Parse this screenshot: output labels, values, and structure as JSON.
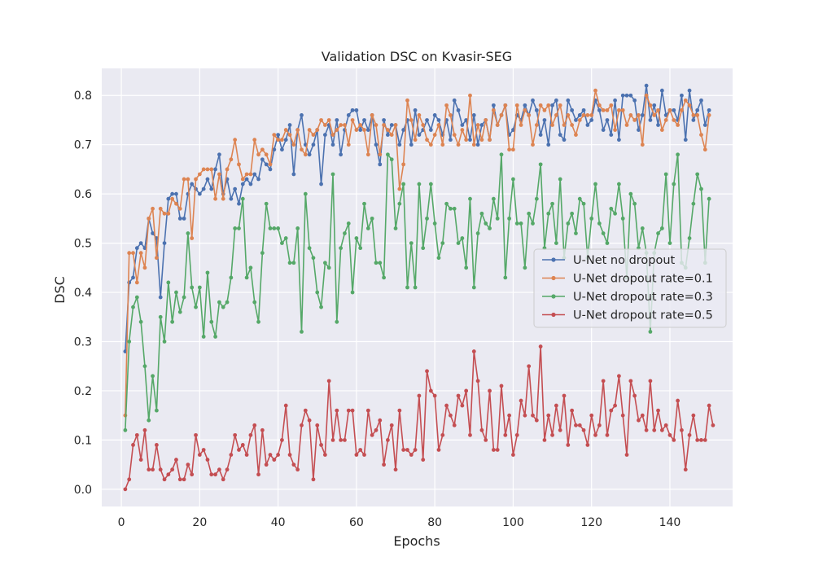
{
  "chart_data": {
    "type": "line",
    "title": "Validation DSC on Kvasir-SEG",
    "xlabel": "Epochs",
    "ylabel": "DSC",
    "xlim": [
      -5,
      156
    ],
    "ylim": [
      -0.035,
      0.855
    ],
    "xticks": [
      0,
      20,
      40,
      60,
      80,
      100,
      120,
      140
    ],
    "yticks": [
      0.0,
      0.1,
      0.2,
      0.3,
      0.4,
      0.5,
      0.6,
      0.7,
      0.8
    ],
    "grid": true,
    "legend_position": "center-right",
    "x_start": 1,
    "series": [
      {
        "name": "U-Net no dropout",
        "color": "#4c72b0",
        "values": [
          0.28,
          0.42,
          0.43,
          0.49,
          0.5,
          0.49,
          0.55,
          0.52,
          0.51,
          0.39,
          0.5,
          0.59,
          0.6,
          0.6,
          0.55,
          0.55,
          0.6,
          0.62,
          0.61,
          0.6,
          0.61,
          0.63,
          0.61,
          0.65,
          0.68,
          0.6,
          0.63,
          0.59,
          0.61,
          0.58,
          0.62,
          0.63,
          0.62,
          0.64,
          0.63,
          0.67,
          0.66,
          0.65,
          0.69,
          0.72,
          0.69,
          0.71,
          0.74,
          0.64,
          0.73,
          0.76,
          0.7,
          0.68,
          0.7,
          0.73,
          0.62,
          0.72,
          0.74,
          0.7,
          0.75,
          0.68,
          0.73,
          0.76,
          0.77,
          0.77,
          0.73,
          0.75,
          0.73,
          0.76,
          0.7,
          0.66,
          0.75,
          0.72,
          0.74,
          0.74,
          0.7,
          0.73,
          0.75,
          0.7,
          0.77,
          0.72,
          0.73,
          0.75,
          0.73,
          0.76,
          0.75,
          0.72,
          0.75,
          0.71,
          0.79,
          0.77,
          0.74,
          0.75,
          0.71,
          0.76,
          0.7,
          0.74,
          0.75,
          0.71,
          0.78,
          0.74,
          0.76,
          0.78,
          0.72,
          0.73,
          0.76,
          0.75,
          0.78,
          0.76,
          0.79,
          0.77,
          0.72,
          0.75,
          0.7,
          0.78,
          0.79,
          0.72,
          0.71,
          0.79,
          0.77,
          0.75,
          0.76,
          0.77,
          0.74,
          0.75,
          0.79,
          0.77,
          0.73,
          0.75,
          0.72,
          0.79,
          0.71,
          0.8,
          0.8,
          0.8,
          0.79,
          0.73,
          0.76,
          0.82,
          0.75,
          0.78,
          0.74,
          0.81,
          0.76,
          0.77,
          0.77,
          0.75,
          0.8,
          0.71,
          0.81,
          0.75,
          0.77,
          0.79,
          0.74,
          0.77
        ]
      },
      {
        "name": "U-Net dropout rate=0.1",
        "color": "#dd8452",
        "values": [
          0.15,
          0.48,
          0.48,
          0.42,
          0.48,
          0.45,
          0.55,
          0.57,
          0.47,
          0.57,
          0.56,
          0.56,
          0.59,
          0.58,
          0.57,
          0.63,
          0.63,
          0.51,
          0.63,
          0.64,
          0.65,
          0.65,
          0.65,
          0.59,
          0.64,
          0.59,
          0.65,
          0.67,
          0.71,
          0.66,
          0.63,
          0.64,
          0.64,
          0.71,
          0.68,
          0.69,
          0.68,
          0.66,
          0.72,
          0.71,
          0.71,
          0.73,
          0.72,
          0.7,
          0.73,
          0.69,
          0.68,
          0.73,
          0.72,
          0.73,
          0.75,
          0.74,
          0.75,
          0.72,
          0.73,
          0.74,
          0.74,
          0.7,
          0.75,
          0.73,
          0.74,
          0.73,
          0.68,
          0.76,
          0.74,
          0.68,
          0.74,
          0.73,
          0.72,
          0.74,
          0.61,
          0.66,
          0.79,
          0.75,
          0.71,
          0.76,
          0.74,
          0.71,
          0.7,
          0.72,
          0.74,
          0.7,
          0.78,
          0.76,
          0.72,
          0.7,
          0.73,
          0.71,
          0.8,
          0.7,
          0.74,
          0.71,
          0.75,
          0.71,
          0.77,
          0.74,
          0.76,
          0.78,
          0.69,
          0.69,
          0.78,
          0.74,
          0.77,
          0.76,
          0.7,
          0.74,
          0.78,
          0.77,
          0.78,
          0.74,
          0.76,
          0.78,
          0.74,
          0.76,
          0.74,
          0.72,
          0.75,
          0.76,
          0.76,
          0.76,
          0.81,
          0.78,
          0.77,
          0.77,
          0.78,
          0.73,
          0.77,
          0.77,
          0.74,
          0.76,
          0.75,
          0.76,
          0.7,
          0.8,
          0.78,
          0.76,
          0.77,
          0.73,
          0.75,
          0.77,
          0.75,
          0.74,
          0.77,
          0.79,
          0.78,
          0.76,
          0.76,
          0.72,
          0.69,
          0.76
        ]
      },
      {
        "name": "U-Net dropout rate=0.3",
        "color": "#55a868",
        "values": [
          0.12,
          0.3,
          0.37,
          0.39,
          0.34,
          0.25,
          0.14,
          0.23,
          0.16,
          0.35,
          0.3,
          0.42,
          0.34,
          0.4,
          0.36,
          0.39,
          0.52,
          0.41,
          0.37,
          0.41,
          0.31,
          0.44,
          0.34,
          0.31,
          0.38,
          0.37,
          0.38,
          0.43,
          0.53,
          0.53,
          0.59,
          0.43,
          0.45,
          0.38,
          0.34,
          0.48,
          0.58,
          0.53,
          0.53,
          0.53,
          0.5,
          0.51,
          0.46,
          0.46,
          0.53,
          0.32,
          0.6,
          0.49,
          0.47,
          0.4,
          0.37,
          0.46,
          0.45,
          0.64,
          0.34,
          0.49,
          0.52,
          0.54,
          0.4,
          0.51,
          0.49,
          0.58,
          0.53,
          0.55,
          0.46,
          0.46,
          0.43,
          0.68,
          0.67,
          0.53,
          0.58,
          0.62,
          0.41,
          0.5,
          0.41,
          0.62,
          0.49,
          0.55,
          0.62,
          0.54,
          0.47,
          0.5,
          0.58,
          0.57,
          0.57,
          0.5,
          0.51,
          0.45,
          0.59,
          0.41,
          0.52,
          0.56,
          0.54,
          0.53,
          0.59,
          0.55,
          0.68,
          0.43,
          0.55,
          0.63,
          0.54,
          0.54,
          0.45,
          0.56,
          0.54,
          0.59,
          0.66,
          0.49,
          0.56,
          0.58,
          0.5,
          0.63,
          0.47,
          0.54,
          0.56,
          0.52,
          0.59,
          0.58,
          0.47,
          0.55,
          0.62,
          0.54,
          0.52,
          0.5,
          0.57,
          0.56,
          0.62,
          0.55,
          0.43,
          0.6,
          0.58,
          0.49,
          0.53,
          0.48,
          0.32,
          0.48,
          0.52,
          0.53,
          0.64,
          0.5,
          0.62,
          0.68,
          0.46,
          0.45,
          0.51,
          0.58,
          0.64,
          0.61,
          0.46,
          0.59
        ]
      },
      {
        "name": "U-Net dropout rate=0.5",
        "color": "#c44e52",
        "values": [
          0.0,
          0.02,
          0.09,
          0.11,
          0.06,
          0.12,
          0.04,
          0.04,
          0.09,
          0.04,
          0.02,
          0.03,
          0.04,
          0.06,
          0.02,
          0.02,
          0.05,
          0.03,
          0.11,
          0.07,
          0.08,
          0.06,
          0.03,
          0.03,
          0.04,
          0.02,
          0.04,
          0.07,
          0.11,
          0.08,
          0.09,
          0.07,
          0.11,
          0.13,
          0.03,
          0.12,
          0.05,
          0.07,
          0.06,
          0.07,
          0.1,
          0.17,
          0.07,
          0.05,
          0.04,
          0.13,
          0.16,
          0.14,
          0.02,
          0.13,
          0.09,
          0.07,
          0.22,
          0.1,
          0.16,
          0.1,
          0.1,
          0.16,
          0.16,
          0.07,
          0.08,
          0.07,
          0.16,
          0.11,
          0.12,
          0.14,
          0.05,
          0.1,
          0.13,
          0.04,
          0.16,
          0.08,
          0.08,
          0.07,
          0.08,
          0.19,
          0.06,
          0.24,
          0.2,
          0.19,
          0.08,
          0.11,
          0.17,
          0.15,
          0.13,
          0.19,
          0.17,
          0.2,
          0.11,
          0.28,
          0.22,
          0.12,
          0.1,
          0.2,
          0.08,
          0.08,
          0.21,
          0.11,
          0.15,
          0.07,
          0.11,
          0.18,
          0.15,
          0.25,
          0.15,
          0.14,
          0.29,
          0.1,
          0.15,
          0.11,
          0.17,
          0.12,
          0.19,
          0.09,
          0.16,
          0.13,
          0.13,
          0.12,
          0.09,
          0.15,
          0.11,
          0.13,
          0.22,
          0.11,
          0.16,
          0.17,
          0.23,
          0.15,
          0.07,
          0.22,
          0.19,
          0.14,
          0.15,
          0.12,
          0.22,
          0.12,
          0.16,
          0.12,
          0.13,
          0.11,
          0.1,
          0.18,
          0.12,
          0.04,
          0.11,
          0.15,
          0.1,
          0.1,
          0.1,
          0.17,
          0.13
        ]
      }
    ]
  }
}
